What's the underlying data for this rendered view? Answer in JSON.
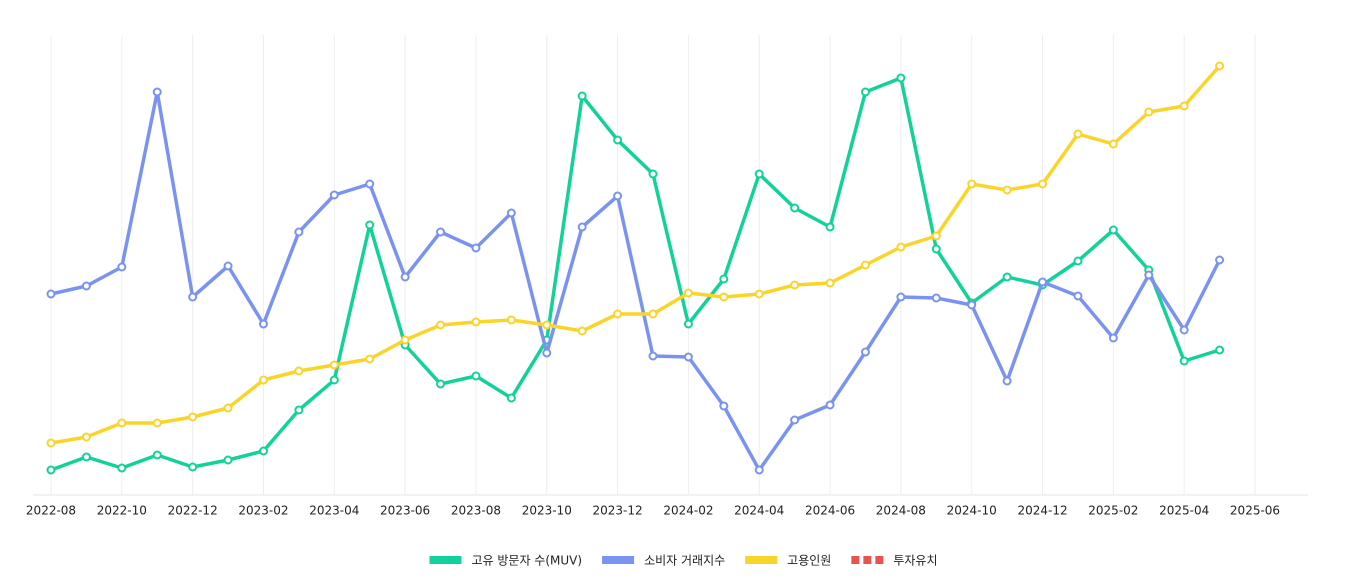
{
  "chart_data": {
    "type": "line",
    "categories": [
      "2022-08",
      null,
      "2022-10",
      null,
      "2022-12",
      null,
      "2023-02",
      null,
      "2023-04",
      null,
      "2023-06",
      null,
      "2023-08",
      null,
      "2023-10",
      null,
      "2023-12",
      null,
      "2024-02",
      null,
      "2024-04",
      null,
      "2024-06",
      null,
      "2024-08",
      null,
      "2024-10",
      null,
      "2024-12",
      null,
      "2025-02",
      null,
      "2025-04",
      null,
      "2025-06"
    ],
    "series": [
      {
        "name": "고유 방문자 수(MUV)",
        "color": "#12d29a",
        "values": [
          25,
          38,
          27,
          40,
          28,
          35,
          44,
          85,
          115,
          270,
          150,
          111,
          119,
          97,
          155,
          399,
          355,
          321,
          171,
          216,
          321,
          287,
          268,
          403,
          417,
          246,
          192,
          218,
          210,
          234,
          265,
          225,
          134,
          145,
          null
        ]
      },
      {
        "name": "소비자 거래지수",
        "color": "#7b93f0",
        "values": [
          201,
          209,
          228,
          403,
          198,
          229,
          171,
          263,
          300,
          311,
          218,
          263,
          247,
          282,
          142,
          268,
          299,
          139,
          138,
          89,
          25,
          75,
          90,
          143,
          198,
          197,
          190,
          114,
          213,
          199,
          157,
          220,
          165,
          235,
          null
        ]
      },
      {
        "name": "고용인원",
        "color": "#fbd42a",
        "values": [
          52,
          58,
          72,
          72,
          78,
          87,
          115,
          124,
          130,
          136,
          155,
          170,
          173,
          175,
          170,
          164,
          181,
          181,
          202,
          198,
          201,
          210,
          212,
          230,
          248,
          259,
          311,
          305,
          311,
          361,
          351,
          383,
          389,
          429,
          null
        ]
      },
      {
        "name": "투자유치",
        "color": "#e8534f",
        "dashed": true,
        "values": [
          null,
          null,
          null,
          null,
          null,
          null,
          null,
          null,
          null,
          null,
          null,
          null,
          null,
          null,
          null,
          null,
          null,
          null,
          null,
          null,
          null,
          null,
          null,
          null,
          null,
          null,
          null,
          null,
          null,
          null,
          null,
          null,
          null,
          null,
          null
        ]
      }
    ],
    "ylim": [
      0,
      460
    ],
    "grid": true,
    "legend": "bottom"
  }
}
